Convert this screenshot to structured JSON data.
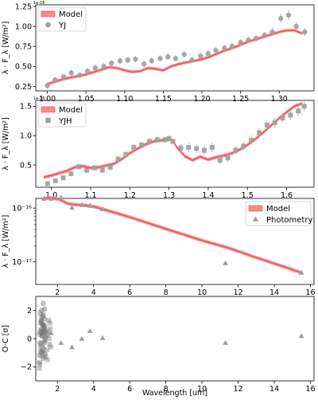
{
  "chart_data": [
    {
      "type": "line",
      "panel": "YJ",
      "offset_label": "1e-16",
      "ylabel": "λ · F_λ [W/m²]",
      "xlim": [
        0.985,
        1.345
      ],
      "ylim": [
        0.195,
        1.27
      ],
      "xticks": [
        1.0,
        1.05,
        1.1,
        1.15,
        1.2,
        1.25,
        1.3
      ],
      "xtick_labels": [
        "1.00",
        "1.05",
        "1.10",
        "1.15",
        "1.20",
        "1.25",
        "1.30"
      ],
      "yticks": [
        0.25,
        0.5,
        0.75,
        1.0,
        1.25
      ],
      "ytick_labels": [
        "0.25",
        "0.50",
        "0.75",
        "1.00",
        "1.25"
      ],
      "legend": [
        "Model",
        "YJ"
      ],
      "legend_position": "top-left",
      "model": {
        "x": [
          1.0,
          1.01,
          1.02,
          1.03,
          1.04,
          1.05,
          1.06,
          1.07,
          1.08,
          1.09,
          1.1,
          1.11,
          1.12,
          1.13,
          1.14,
          1.15,
          1.16,
          1.17,
          1.18,
          1.19,
          1.2,
          1.21,
          1.22,
          1.23,
          1.24,
          1.25,
          1.26,
          1.27,
          1.28,
          1.29,
          1.3,
          1.31,
          1.32,
          1.33
        ],
        "y": [
          0.28,
          0.31,
          0.34,
          0.36,
          0.38,
          0.4,
          0.43,
          0.46,
          0.49,
          0.48,
          0.45,
          0.43,
          0.44,
          0.48,
          0.47,
          0.45,
          0.5,
          0.53,
          0.55,
          0.57,
          0.59,
          0.62,
          0.66,
          0.7,
          0.73,
          0.77,
          0.81,
          0.84,
          0.87,
          0.9,
          0.93,
          0.95,
          0.95,
          0.91
        ],
        "band": 0.02
      },
      "data": {
        "x": [
          1.0,
          1.01,
          1.021,
          1.031,
          1.042,
          1.052,
          1.062,
          1.073,
          1.083,
          1.094,
          1.104,
          1.114,
          1.125,
          1.135,
          1.146,
          1.156,
          1.166,
          1.177,
          1.187,
          1.198,
          1.208,
          1.218,
          1.229,
          1.239,
          1.25,
          1.26,
          1.27,
          1.281,
          1.291,
          1.302,
          1.312,
          1.322,
          1.333
        ],
        "y": [
          0.26,
          0.33,
          0.37,
          0.42,
          0.39,
          0.44,
          0.48,
          0.5,
          0.54,
          0.57,
          0.58,
          0.59,
          0.53,
          0.57,
          0.6,
          0.62,
          0.6,
          0.65,
          0.58,
          0.63,
          0.66,
          0.7,
          0.73,
          0.75,
          0.8,
          0.83,
          0.85,
          0.89,
          0.93,
          1.1,
          1.14,
          1.0,
          0.93
        ],
        "err": [
          0.04,
          0.04,
          0.04,
          0.04,
          0.04,
          0.04,
          0.04,
          0.04,
          0.04,
          0.04,
          0.04,
          0.04,
          0.04,
          0.04,
          0.04,
          0.04,
          0.04,
          0.04,
          0.04,
          0.04,
          0.04,
          0.04,
          0.04,
          0.04,
          0.04,
          0.04,
          0.04,
          0.04,
          0.05,
          0.06,
          0.06,
          0.05,
          0.05
        ]
      }
    },
    {
      "type": "line",
      "panel": "YJH",
      "offset_label": "1e-16",
      "ylabel": "λ · F_λ [W/m²]",
      "xlim": [
        0.96,
        1.67
      ],
      "ylim": [
        0.12,
        1.6
      ],
      "xticks": [
        1.0,
        1.1,
        1.2,
        1.3,
        1.4,
        1.5,
        1.6
      ],
      "xtick_labels": [
        "1.0",
        "1.1",
        "1.2",
        "1.3",
        "1.4",
        "1.5",
        "1.6"
      ],
      "yticks": [
        0.5,
        1.0,
        1.5
      ],
      "ytick_labels": [
        "0.5",
        "1.0",
        "1.5"
      ],
      "legend": [
        "Model",
        "YJH"
      ],
      "legend_position": "top-left",
      "model": {
        "x": [
          0.98,
          1.0,
          1.02,
          1.04,
          1.06,
          1.08,
          1.1,
          1.12,
          1.14,
          1.16,
          1.18,
          1.2,
          1.22,
          1.24,
          1.26,
          1.28,
          1.3,
          1.31,
          1.32,
          1.34,
          1.36,
          1.38,
          1.4,
          1.42,
          1.44,
          1.46,
          1.48,
          1.5,
          1.52,
          1.54,
          1.56,
          1.58,
          1.6,
          1.62,
          1.64
        ],
        "y": [
          0.29,
          0.32,
          0.36,
          0.4,
          0.46,
          0.48,
          0.45,
          0.46,
          0.49,
          0.52,
          0.6,
          0.7,
          0.78,
          0.85,
          0.9,
          0.92,
          0.94,
          0.91,
          0.8,
          0.65,
          0.58,
          0.64,
          0.59,
          0.63,
          0.66,
          0.7,
          0.76,
          0.84,
          0.94,
          1.05,
          1.17,
          1.29,
          1.4,
          1.5,
          1.55
        ],
        "band": 0.03
      },
      "data": {
        "x": [
          0.99,
          1.01,
          1.03,
          1.05,
          1.07,
          1.09,
          1.11,
          1.13,
          1.15,
          1.17,
          1.19,
          1.21,
          1.23,
          1.25,
          1.27,
          1.29,
          1.3,
          1.31,
          1.33,
          1.35,
          1.37,
          1.39,
          1.41,
          1.43,
          1.45,
          1.47,
          1.49,
          1.51,
          1.53,
          1.55,
          1.57,
          1.59,
          1.61,
          1.63,
          1.645
        ],
        "y": [
          0.18,
          0.23,
          0.28,
          0.35,
          0.47,
          0.41,
          0.45,
          0.41,
          0.46,
          0.6,
          0.68,
          0.8,
          0.84,
          0.9,
          0.93,
          0.93,
          0.95,
          0.9,
          0.79,
          0.8,
          0.78,
          0.75,
          0.8,
          0.58,
          0.62,
          0.75,
          0.82,
          0.92,
          1.05,
          1.18,
          1.22,
          1.3,
          1.35,
          1.42,
          1.5
        ],
        "err": [
          0.04,
          0.04,
          0.04,
          0.04,
          0.05,
          0.04,
          0.04,
          0.04,
          0.04,
          0.05,
          0.05,
          0.05,
          0.05,
          0.05,
          0.05,
          0.05,
          0.05,
          0.05,
          0.06,
          0.08,
          0.08,
          0.08,
          0.08,
          0.07,
          0.07,
          0.07,
          0.07,
          0.08,
          0.08,
          0.08,
          0.08,
          0.08,
          0.08,
          0.08,
          0.08
        ]
      }
    },
    {
      "type": "line",
      "panel": "Photometry",
      "scale": "log",
      "ylabel": "λ · F_λ [W/m²]",
      "xlim": [
        0.8,
        16.2
      ],
      "ylim_log10": [
        -17.42,
        -15.82
      ],
      "xticks": [
        2,
        4,
        6,
        8,
        10,
        12,
        14,
        16
      ],
      "xtick_labels": [
        "2",
        "4",
        "6",
        "8",
        "10",
        "12",
        "14",
        "16"
      ],
      "yticks_log10": [
        -16,
        -17
      ],
      "ytick_labels": [
        "10⁻¹⁶",
        "10⁻¹⁷"
      ],
      "legend": [
        "Model",
        "Photometry"
      ],
      "legend_position": "top-right",
      "model": {
        "x": [
          1.2,
          1.6,
          2.1,
          2.6,
          3.1,
          3.6,
          4.1,
          4.5,
          6.0,
          8.0,
          10.0,
          11.5,
          13.0,
          14.5,
          15.5
        ],
        "y": [
          1.5e-16,
          1.55e-16,
          1.45e-16,
          1.2e-16,
          1.15e-16,
          1.12e-16,
          1.05e-16,
          9.6e-17,
          6.8e-17,
          4.1e-17,
          2.5e-17,
          1.8e-17,
          1.2e-17,
          8.2e-18,
          6.3e-18
        ],
        "band_factor": 1.08
      },
      "data": {
        "x": [
          1.25,
          1.65,
          2.2,
          2.8,
          3.35,
          3.8,
          4.5,
          11.3,
          15.5
        ],
        "y": [
          1.5e-16,
          1.5e-16,
          1.58e-16,
          1.02e-16,
          1.15e-16,
          1.12e-16,
          9.6e-17,
          9.5e-18,
          6.3e-18
        ],
        "err_factor": 1.1
      }
    },
    {
      "type": "scatter",
      "panel": "Residuals",
      "ylabel": "O-C [σ]",
      "xlabel": "Wavelength [um]",
      "xlim": [
        0.8,
        16.2
      ],
      "ylim": [
        -3.0,
        3.0
      ],
      "xticks": [
        2,
        4,
        6,
        8,
        10,
        12,
        14,
        16
      ],
      "xtick_labels": [
        "2",
        "4",
        "6",
        "8",
        "10",
        "12",
        "14",
        "16"
      ],
      "yticks": [
        -2,
        0,
        2
      ],
      "ytick_labels": [
        "−2",
        "0",
        "2"
      ],
      "spectral_circles": {
        "x": [
          1.0,
          1.02,
          1.04,
          1.06,
          1.08,
          1.1,
          1.12,
          1.14,
          1.16,
          1.18,
          1.2,
          1.22,
          1.24,
          1.26,
          1.28,
          1.3,
          1.32,
          1.01,
          1.05,
          1.09,
          1.13,
          1.17,
          1.21,
          1.25,
          1.29,
          1.31,
          1.11,
          1.19,
          1.27,
          1.03
        ],
        "y": [
          -1.7,
          -1.2,
          0.5,
          1.1,
          -0.4,
          1.3,
          2.0,
          0.7,
          0.2,
          -0.8,
          1.6,
          2.5,
          0.9,
          -0.2,
          1.4,
          0.5,
          -1.1,
          0.3,
          1.8,
          -0.6,
          0.4,
          1.0,
          -1.4,
          0.6,
          2.1,
          0.1,
          1.2,
          -0.9,
          0.8,
          -0.3
        ]
      },
      "spectral_squares": {
        "x": [
          1.0,
          1.03,
          1.06,
          1.09,
          1.12,
          1.15,
          1.18,
          1.21,
          1.24,
          1.27,
          1.3,
          1.33,
          1.36,
          1.39,
          1.42,
          1.45,
          1.48,
          1.51,
          1.54,
          1.57,
          1.6,
          1.63,
          1.1,
          1.22,
          1.35,
          1.47,
          1.58
        ],
        "y": [
          -2.1,
          -1.8,
          -0.9,
          0.6,
          1.5,
          0.2,
          -1.2,
          1.0,
          0.4,
          -0.3,
          0.9,
          -0.1,
          0.6,
          0.2,
          -0.8,
          -1.5,
          0.5,
          1.3,
          0.0,
          -0.4,
          0.7,
          -0.6,
          -1.0,
          1.7,
          -1.3,
          0.3,
          1.1
        ]
      },
      "triangles": {
        "x": [
          1.25,
          1.65,
          2.2,
          2.8,
          3.35,
          3.8,
          4.5,
          11.3,
          15.5
        ],
        "y": [
          -0.6,
          0.4,
          -0.3,
          -0.6,
          0.0,
          0.55,
          0.05,
          -0.3,
          0.2
        ]
      }
    }
  ]
}
